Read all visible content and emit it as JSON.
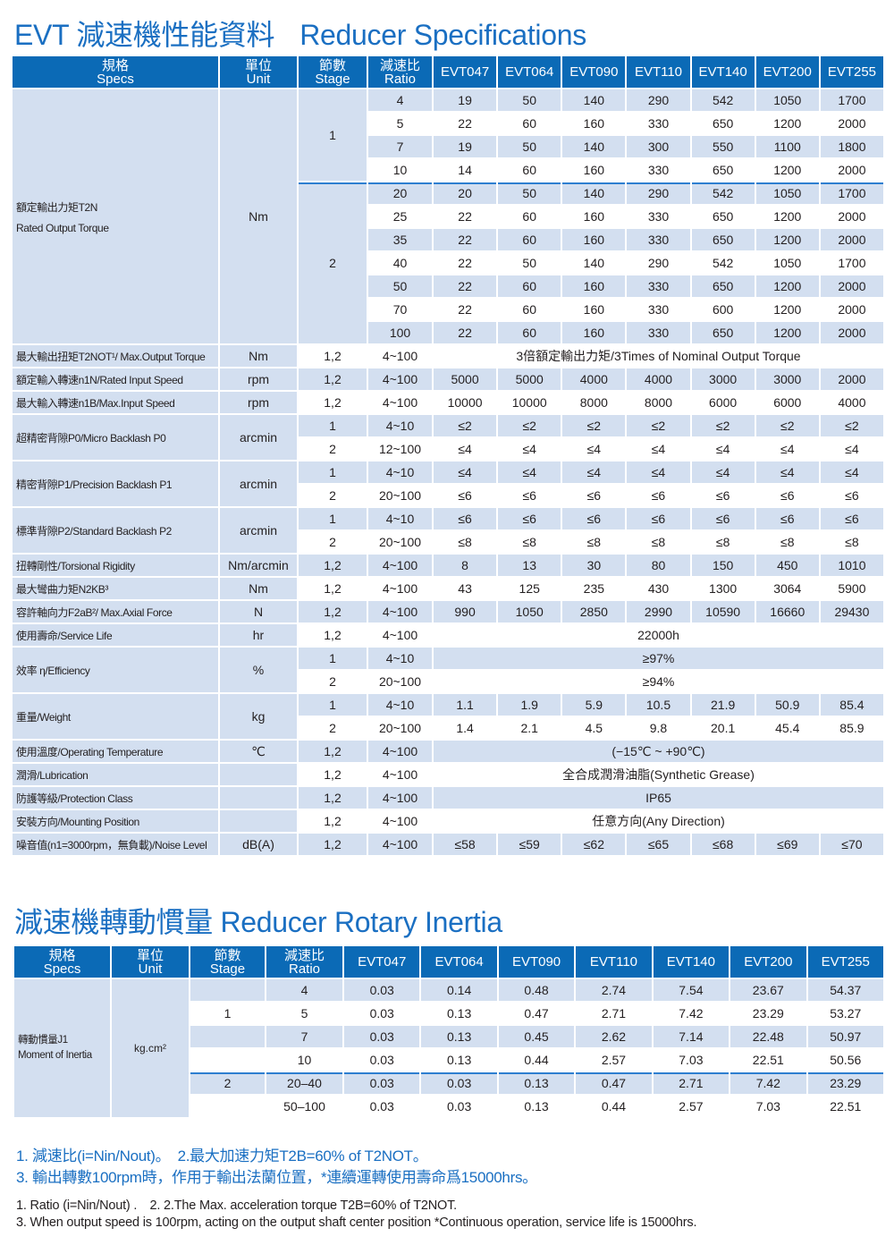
{
  "title": {
    "zh": "EVT 減速機性能資料",
    "en": "Reducer Specifications"
  },
  "spec_table": {
    "headers": [
      {
        "zh": "規格",
        "en": "Specs"
      },
      {
        "zh": "單位",
        "en": "Unit"
      },
      {
        "zh": "節數",
        "en": "Stage"
      },
      {
        "zh": "減速比",
        "en": "Ratio"
      }
    ],
    "models": [
      "EVT047",
      "EVT064",
      "EVT090",
      "EVT110",
      "EVT140",
      "EVT200",
      "EVT255"
    ],
    "torque": {
      "label_zh": "額定輸出力矩T2N",
      "label_en": "Rated Output Torque",
      "unit": "Nm",
      "groups": [
        {
          "stage": "1",
          "rows": [
            {
              "ratio": "4",
              "values": [
                "19",
                "50",
                "140",
                "290",
                "542",
                "1050",
                "1700"
              ]
            },
            {
              "ratio": "5",
              "values": [
                "22",
                "60",
                "160",
                "330",
                "650",
                "1200",
                "2000"
              ]
            },
            {
              "ratio": "7",
              "values": [
                "19",
                "50",
                "140",
                "300",
                "550",
                "1100",
                "1800"
              ]
            },
            {
              "ratio": "10",
              "values": [
                "14",
                "60",
                "160",
                "330",
                "650",
                "1200",
                "2000"
              ]
            }
          ]
        },
        {
          "stage": "2",
          "rows": [
            {
              "ratio": "20",
              "values": [
                "20",
                "50",
                "140",
                "290",
                "542",
                "1050",
                "1700"
              ]
            },
            {
              "ratio": "25",
              "values": [
                "22",
                "60",
                "160",
                "330",
                "650",
                "1200",
                "2000"
              ]
            },
            {
              "ratio": "35",
              "values": [
                "22",
                "60",
                "160",
                "330",
                "650",
                "1200",
                "2000"
              ]
            },
            {
              "ratio": "40",
              "values": [
                "22",
                "50",
                "140",
                "290",
                "542",
                "1050",
                "1700"
              ]
            },
            {
              "ratio": "50",
              "values": [
                "22",
                "60",
                "160",
                "330",
                "650",
                "1200",
                "2000"
              ]
            },
            {
              "ratio": "70",
              "values": [
                "22",
                "60",
                "160",
                "330",
                "600",
                "1200",
                "2000"
              ]
            },
            {
              "ratio": "100",
              "values": [
                "22",
                "60",
                "160",
                "330",
                "650",
                "1200",
                "2000"
              ]
            }
          ]
        }
      ]
    },
    "specs": [
      {
        "label": "最大輸出扭矩T2NOT¹/ Max.Output Torque",
        "unit": "Nm",
        "rows": [
          {
            "stage": "1,2",
            "ratio": "4~100",
            "span": "3倍額定輸出力矩/3Times of Nominal Output Torque"
          }
        ]
      },
      {
        "label": "額定輸入轉速n1N/Rated Input Speed",
        "unit": "rpm",
        "rows": [
          {
            "stage": "1,2",
            "ratio": "4~100",
            "values": [
              "5000",
              "5000",
              "4000",
              "4000",
              "3000",
              "3000",
              "2000"
            ]
          }
        ]
      },
      {
        "label": "最大輸入轉速n1B/Max.Input Speed",
        "unit": "rpm",
        "rows": [
          {
            "stage": "1,2",
            "ratio": "4~100",
            "values": [
              "10000",
              "10000",
              "8000",
              "8000",
              "6000",
              "6000",
              "4000"
            ]
          }
        ]
      },
      {
        "label": "超精密背隙P0/Micro Backlash P0",
        "unit": "arcmin",
        "rows": [
          {
            "stage": "1",
            "ratio": "4~10",
            "values": [
              "≤2",
              "≤2",
              "≤2",
              "≤2",
              "≤2",
              "≤2",
              "≤2"
            ]
          },
          {
            "stage": "2",
            "ratio": "12~100",
            "values": [
              "≤4",
              "≤4",
              "≤4",
              "≤4",
              "≤4",
              "≤4",
              "≤4"
            ]
          }
        ]
      },
      {
        "label": "精密背隙P1/Precision Backlash P1",
        "unit": "arcmin",
        "rows": [
          {
            "stage": "1",
            "ratio": "4~10",
            "values": [
              "≤4",
              "≤4",
              "≤4",
              "≤4",
              "≤4",
              "≤4",
              "≤4"
            ]
          },
          {
            "stage": "2",
            "ratio": "20~100",
            "values": [
              "≤6",
              "≤6",
              "≤6",
              "≤6",
              "≤6",
              "≤6",
              "≤6"
            ]
          }
        ]
      },
      {
        "label": "標準背隙P2/Standard Backlash P2",
        "unit": "arcmin",
        "rows": [
          {
            "stage": "1",
            "ratio": "4~10",
            "values": [
              "≤6",
              "≤6",
              "≤6",
              "≤6",
              "≤6",
              "≤6",
              "≤6"
            ]
          },
          {
            "stage": "2",
            "ratio": "20~100",
            "values": [
              "≤8",
              "≤8",
              "≤8",
              "≤8",
              "≤8",
              "≤8",
              "≤8"
            ]
          }
        ]
      },
      {
        "label": "扭轉剛性/Torsional Rigidity",
        "unit": "Nm/arcmin",
        "rows": [
          {
            "stage": "1,2",
            "ratio": "4~100",
            "values": [
              "8",
              "13",
              "30",
              "80",
              "150",
              "450",
              "1010"
            ]
          }
        ]
      },
      {
        "label": "最大彎曲力矩N2KB³",
        "unit": "Nm",
        "rows": [
          {
            "stage": "1,2",
            "ratio": "4~100",
            "values": [
              "43",
              "125",
              "235",
              "430",
              "1300",
              "3064",
              "5900"
            ]
          }
        ]
      },
      {
        "label": "容許軸向力F2aB²/ Max.Axial Force",
        "unit": "N",
        "rows": [
          {
            "stage": "1,2",
            "ratio": "4~100",
            "values": [
              "990",
              "1050",
              "2850",
              "2990",
              "10590",
              "16660",
              "29430"
            ]
          }
        ]
      },
      {
        "label": "使用壽命/Service Life",
        "unit": "hr",
        "rows": [
          {
            "stage": "1,2",
            "ratio": "4~100",
            "span": "22000h"
          }
        ]
      },
      {
        "label": "效率 η/Efficiency",
        "unit": "%",
        "rows": [
          {
            "stage": "1",
            "ratio": "4~10",
            "span": "≥97%"
          },
          {
            "stage": "2",
            "ratio": "20~100",
            "span": "≥94%"
          }
        ]
      },
      {
        "label": "重量/Weight",
        "unit": "kg",
        "rows": [
          {
            "stage": "1",
            "ratio": "4~10",
            "values": [
              "1.1",
              "1.9",
              "5.9",
              "10.5",
              "21.9",
              "50.9",
              "85.4"
            ]
          },
          {
            "stage": "2",
            "ratio": "20~100",
            "values": [
              "1.4",
              "2.1",
              "4.5",
              "9.8",
              "20.1",
              "45.4",
              "85.9"
            ]
          }
        ]
      },
      {
        "label": "使用溫度/Operating Temperature",
        "unit": "℃",
        "rows": [
          {
            "stage": "1,2",
            "ratio": "4~100",
            "span": "(−15℃ ~ +90℃)"
          }
        ]
      },
      {
        "label": "潤滑/Lubrication",
        "unit": "",
        "rows": [
          {
            "stage": "1,2",
            "ratio": "4~100",
            "span": "全合成潤滑油脂(Synthetic Grease)"
          }
        ]
      },
      {
        "label": "防護等級/Protection Class",
        "unit": "",
        "rows": [
          {
            "stage": "1,2",
            "ratio": "4~100",
            "span": "IP65"
          }
        ]
      },
      {
        "label": "安裝方向/Mounting Position",
        "unit": "",
        "rows": [
          {
            "stage": "1,2",
            "ratio": "4~100",
            "span": "任意方向(Any Direction)"
          }
        ]
      },
      {
        "label": "噪音值(n1=3000rpm，無負載)/Noise Level",
        "unit": "dB(A)",
        "rows": [
          {
            "stage": "1,2",
            "ratio": "4~100",
            "values": [
              "≤58",
              "≤59",
              "≤62",
              "≤65",
              "≤68",
              "≤69",
              "≤70"
            ]
          }
        ]
      }
    ]
  },
  "inertia_title": {
    "zh": "減速機轉動慣量",
    "en": "Reducer Rotary Inertia"
  },
  "inertia_table": {
    "headers": [
      {
        "zh": "規格",
        "en": "Specs"
      },
      {
        "zh": "單位",
        "en": "Unit"
      },
      {
        "zh": "節數",
        "en": "Stage"
      },
      {
        "zh": "減速比",
        "en": "Ratio"
      }
    ],
    "models": [
      "EVT047",
      "EVT064",
      "EVT090",
      "EVT110",
      "EVT140",
      "EVT200",
      "EVT255"
    ],
    "label_zh": "轉動慣量J1",
    "label_en": "Moment of Inertia",
    "unit": "kg.cm²",
    "rows": [
      {
        "stage": "",
        "ratio": "4",
        "values": [
          "0.03",
          "0.14",
          "0.48",
          "2.74",
          "7.54",
          "23.67",
          "54.37"
        ]
      },
      {
        "stage": "1",
        "ratio": "5",
        "values": [
          "0.03",
          "0.13",
          "0.47",
          "2.71",
          "7.42",
          "23.29",
          "53.27"
        ]
      },
      {
        "stage": "",
        "ratio": "7",
        "values": [
          "0.03",
          "0.13",
          "0.45",
          "2.62",
          "7.14",
          "22.48",
          "50.97"
        ]
      },
      {
        "stage": "",
        "ratio": "10",
        "values": [
          "0.03",
          "0.13",
          "0.44",
          "2.57",
          "7.03",
          "22.51",
          "50.56"
        ]
      },
      {
        "stage": "2",
        "ratio": "20–40",
        "values": [
          "0.03",
          "0.03",
          "0.13",
          "0.47",
          "2.71",
          "7.42",
          "23.29"
        ]
      },
      {
        "stage": "",
        "ratio": "50–100",
        "values": [
          "0.03",
          "0.03",
          "0.13",
          "0.44",
          "2.57",
          "7.03",
          "22.51"
        ]
      }
    ]
  },
  "notes": {
    "zh": [
      "1. 減速比(i=Nin/Nout)。　2.最大加速力矩T2B=60% of T2NOT。",
      "3. 輸出轉數100rpm時，作用于輸出法蘭位置，*連續運轉使用壽命爲15000hrs。"
    ],
    "en": [
      "1. Ratio (i=Nin/Nout) .　2. 2.The Max. acceleration torque T2B=60% of T2NOT.",
      "3. When output speed is 100rpm, acting on the output shaft center position *Continuous operation, service life is 15000hrs."
    ]
  },
  "colors": {
    "accent": "#1a6fc2",
    "header_bg": "#0b6ab6",
    "stripe": "#d3dff0"
  }
}
